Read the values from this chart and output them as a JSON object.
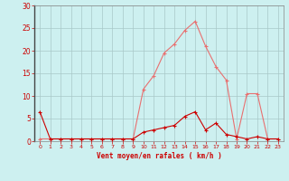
{
  "x_labels": [
    0,
    1,
    2,
    3,
    4,
    5,
    6,
    7,
    8,
    9,
    10,
    11,
    12,
    13,
    14,
    15,
    16,
    17,
    18,
    19,
    20,
    21,
    22,
    23
  ],
  "wind_gust": [
    0.5,
    0.5,
    0.5,
    0.5,
    0.5,
    0.5,
    0.5,
    0.5,
    0.5,
    0.5,
    11.5,
    14.5,
    19.5,
    21.5,
    24.5,
    26.5,
    21.0,
    16.5,
    13.5,
    0.5,
    10.5,
    10.5,
    0.5,
    0.5
  ],
  "wind_avg": [
    6.5,
    0.5,
    0.5,
    0.5,
    0.5,
    0.5,
    0.5,
    0.5,
    0.5,
    0.5,
    2.0,
    2.5,
    3.0,
    3.5,
    5.5,
    6.5,
    2.5,
    4.0,
    1.5,
    1.0,
    0.5,
    1.0,
    0.5,
    0.5
  ],
  "gust_color": "#e87070",
  "avg_color": "#cc0000",
  "background_color": "#cdf0f0",
  "grid_color": "#a8c8c8",
  "tick_label_color": "#cc0000",
  "xlabel_color": "#cc0000",
  "spine_color": "#888888",
  "ylim": [
    0,
    30
  ],
  "yticks": [
    0,
    5,
    10,
    15,
    20,
    25,
    30
  ],
  "xlabel": "Vent moyen/en rafales ( km/h )"
}
